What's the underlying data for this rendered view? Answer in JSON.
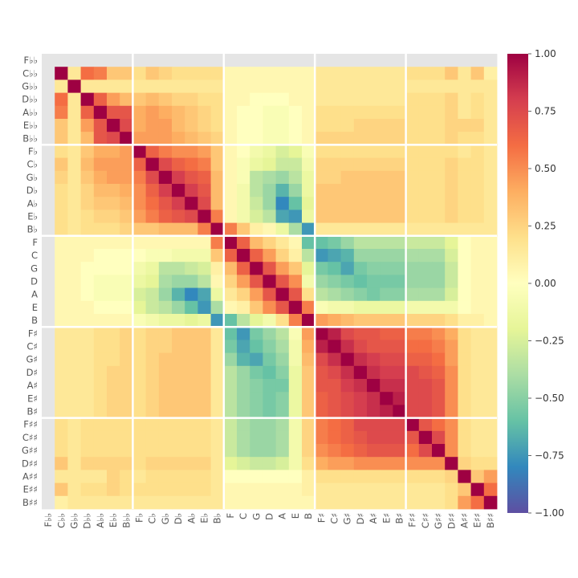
{
  "chart_data": {
    "type": "heatmap",
    "title": "",
    "xlabel": "",
    "ylabel": "",
    "labels": [
      "F♭♭",
      "C♭♭",
      "G♭♭",
      "D♭♭",
      "A♭♭",
      "E♭♭",
      "B♭♭",
      "F♭",
      "C♭",
      "G♭",
      "D♭",
      "A♭",
      "E♭",
      "B♭",
      "F",
      "C",
      "G",
      "D",
      "A",
      "E",
      "B",
      "F♯",
      "C♯",
      "G♯",
      "D♯",
      "A♯",
      "E♯",
      "B♯",
      "F♯♯",
      "C♯♯",
      "G♯♯",
      "D♯♯",
      "A♯♯",
      "E♯♯",
      "B♯♯"
    ],
    "values_row_major_35x35": [
      [
        null,
        null,
        null,
        null,
        null,
        null,
        null,
        null,
        null,
        null,
        null,
        null,
        null,
        null,
        null,
        null,
        null,
        null,
        null,
        null,
        null,
        null,
        null,
        null,
        null,
        null,
        null,
        null,
        null,
        null,
        null,
        null,
        null,
        null,
        null
      ],
      [
        null,
        1.0,
        0.15,
        0.6,
        0.55,
        0.3,
        0.3,
        0.2,
        0.3,
        0.25,
        0.2,
        0.2,
        0.2,
        0.2,
        0.05,
        0.05,
        0.05,
        0.05,
        0.05,
        0.05,
        0.05,
        0.15,
        0.15,
        0.15,
        0.15,
        0.15,
        0.15,
        0.15,
        0.2,
        0.2,
        0.2,
        0.3,
        0.15,
        0.3,
        0.1
      ],
      [
        null,
        0.15,
        1.0,
        0.15,
        0.15,
        0.15,
        0.15,
        0.15,
        0.15,
        0.15,
        0.15,
        0.15,
        0.15,
        0.15,
        0.05,
        0.05,
        0.05,
        0.05,
        0.05,
        0.05,
        0.05,
        0.15,
        0.15,
        0.15,
        0.15,
        0.15,
        0.15,
        0.15,
        0.15,
        0.15,
        0.15,
        0.15,
        0.15,
        0.15,
        0.15
      ],
      [
        null,
        0.6,
        0.15,
        1.0,
        0.65,
        0.45,
        0.35,
        0.3,
        0.35,
        0.3,
        0.25,
        0.25,
        0.2,
        0.2,
        0.05,
        0.05,
        0.0,
        0.0,
        0.0,
        0.05,
        0.05,
        0.15,
        0.15,
        0.15,
        0.15,
        0.15,
        0.15,
        0.15,
        0.2,
        0.2,
        0.2,
        0.25,
        0.15,
        0.2,
        0.15
      ],
      [
        null,
        0.55,
        0.15,
        0.65,
        1.0,
        0.7,
        0.7,
        0.4,
        0.45,
        0.4,
        0.35,
        0.3,
        0.25,
        0.2,
        0.05,
        0.0,
        0.0,
        -0.05,
        -0.05,
        0.0,
        0.05,
        0.2,
        0.2,
        0.2,
        0.2,
        0.2,
        0.2,
        0.2,
        0.2,
        0.2,
        0.2,
        0.25,
        0.15,
        0.2,
        0.15
      ],
      [
        null,
        0.3,
        0.15,
        0.45,
        0.7,
        1.0,
        0.75,
        0.4,
        0.45,
        0.45,
        0.35,
        0.3,
        0.25,
        0.2,
        0.05,
        0.0,
        0.0,
        -0.05,
        -0.05,
        0.0,
        0.05,
        0.2,
        0.2,
        0.2,
        0.25,
        0.25,
        0.25,
        0.25,
        0.2,
        0.2,
        0.2,
        0.25,
        0.25,
        0.25,
        0.15
      ],
      [
        null,
        0.3,
        0.15,
        0.35,
        0.7,
        0.75,
        1.0,
        0.45,
        0.45,
        0.45,
        0.4,
        0.35,
        0.3,
        0.25,
        0.05,
        0.0,
        0.0,
        -0.05,
        -0.05,
        0.0,
        0.05,
        0.25,
        0.25,
        0.25,
        0.25,
        0.25,
        0.25,
        0.25,
        0.2,
        0.2,
        0.2,
        0.25,
        0.2,
        0.2,
        0.15
      ],
      [
        null,
        0.2,
        0.15,
        0.3,
        0.4,
        0.4,
        0.45,
        1.0,
        0.65,
        0.55,
        0.5,
        0.5,
        0.45,
        0.3,
        0.05,
        0.0,
        -0.1,
        -0.15,
        -0.25,
        -0.2,
        -0.05,
        0.2,
        0.2,
        0.2,
        0.2,
        0.2,
        0.2,
        0.2,
        0.2,
        0.2,
        0.2,
        0.2,
        0.15,
        0.2,
        0.15
      ],
      [
        null,
        0.3,
        0.15,
        0.35,
        0.45,
        0.45,
        0.45,
        0.65,
        1.0,
        0.75,
        0.65,
        0.6,
        0.55,
        0.3,
        0.05,
        -0.05,
        -0.15,
        -0.2,
        -0.3,
        -0.3,
        -0.1,
        0.25,
        0.25,
        0.25,
        0.25,
        0.25,
        0.25,
        0.25,
        0.2,
        0.2,
        0.2,
        0.25,
        0.2,
        0.2,
        0.15
      ],
      [
        null,
        0.25,
        0.15,
        0.3,
        0.4,
        0.45,
        0.45,
        0.55,
        0.75,
        1.0,
        0.8,
        0.7,
        0.65,
        0.35,
        0.05,
        -0.05,
        -0.35,
        -0.4,
        -0.45,
        -0.35,
        -0.15,
        0.25,
        0.25,
        0.3,
        0.3,
        0.3,
        0.3,
        0.3,
        0.2,
        0.2,
        0.2,
        0.25,
        0.2,
        0.2,
        0.15
      ],
      [
        null,
        0.2,
        0.15,
        0.25,
        0.35,
        0.35,
        0.4,
        0.5,
        0.65,
        0.8,
        1.0,
        0.8,
        0.7,
        0.35,
        0.05,
        -0.1,
        -0.35,
        -0.45,
        -0.65,
        -0.45,
        -0.15,
        0.3,
        0.3,
        0.3,
        0.3,
        0.3,
        0.3,
        0.3,
        0.2,
        0.2,
        0.2,
        0.25,
        0.2,
        0.2,
        0.15
      ],
      [
        null,
        0.2,
        0.15,
        0.25,
        0.3,
        0.3,
        0.35,
        0.5,
        0.6,
        0.7,
        0.8,
        1.0,
        0.75,
        0.35,
        0.05,
        -0.1,
        -0.3,
        -0.45,
        -0.8,
        -0.6,
        -0.2,
        0.3,
        0.3,
        0.3,
        0.3,
        0.3,
        0.3,
        0.3,
        0.2,
        0.2,
        0.2,
        0.25,
        0.2,
        0.2,
        0.15
      ],
      [
        null,
        0.2,
        0.15,
        0.2,
        0.25,
        0.25,
        0.3,
        0.45,
        0.55,
        0.65,
        0.7,
        0.75,
        1.0,
        0.55,
        0.05,
        -0.1,
        -0.25,
        -0.35,
        -0.7,
        -0.75,
        -0.15,
        0.3,
        0.3,
        0.3,
        0.3,
        0.3,
        0.3,
        0.3,
        0.2,
        0.2,
        0.2,
        0.25,
        0.2,
        0.2,
        0.15
      ],
      [
        null,
        0.2,
        0.15,
        0.2,
        0.2,
        0.2,
        0.25,
        0.3,
        0.3,
        0.35,
        0.35,
        0.35,
        0.55,
        1.0,
        0.55,
        0.3,
        0.1,
        0.05,
        -0.15,
        -0.4,
        -0.75,
        0.15,
        0.15,
        0.15,
        0.15,
        0.15,
        0.15,
        0.15,
        0.15,
        0.15,
        0.15,
        0.15,
        0.15,
        0.15,
        0.15
      ],
      [
        null,
        0.05,
        0.05,
        0.05,
        0.05,
        0.05,
        0.05,
        0.05,
        0.05,
        0.05,
        0.05,
        0.05,
        0.05,
        0.55,
        1.0,
        0.65,
        0.35,
        0.25,
        0.15,
        0.05,
        -0.6,
        -0.6,
        -0.55,
        -0.45,
        -0.35,
        -0.35,
        -0.35,
        -0.35,
        -0.3,
        -0.3,
        -0.3,
        -0.2,
        0.0,
        0.05,
        0.05
      ],
      [
        null,
        0.05,
        0.05,
        0.05,
        0.0,
        0.0,
        0.0,
        0.0,
        -0.05,
        -0.05,
        -0.1,
        -0.1,
        -0.1,
        0.3,
        0.65,
        1.0,
        0.65,
        0.45,
        0.25,
        0.1,
        -0.35,
        -0.75,
        -0.7,
        -0.65,
        -0.45,
        -0.45,
        -0.45,
        -0.45,
        -0.4,
        -0.4,
        -0.4,
        -0.25,
        0.0,
        0.05,
        0.05
      ],
      [
        null,
        0.05,
        0.05,
        0.0,
        0.0,
        0.0,
        0.0,
        -0.1,
        -0.15,
        -0.35,
        -0.35,
        -0.3,
        -0.25,
        0.1,
        0.35,
        0.65,
        1.0,
        0.7,
        0.45,
        0.3,
        -0.2,
        -0.55,
        -0.6,
        -0.7,
        -0.55,
        -0.5,
        -0.5,
        -0.5,
        -0.45,
        -0.45,
        -0.45,
        -0.3,
        0.0,
        0.05,
        0.05
      ],
      [
        null,
        0.05,
        0.05,
        0.0,
        -0.05,
        -0.05,
        -0.05,
        -0.15,
        -0.2,
        -0.4,
        -0.45,
        -0.45,
        -0.35,
        0.05,
        0.25,
        0.45,
        0.7,
        1.0,
        0.7,
        0.5,
        -0.1,
        -0.45,
        -0.5,
        -0.55,
        -0.6,
        -0.55,
        -0.55,
        -0.55,
        -0.45,
        -0.45,
        -0.45,
        -0.3,
        0.0,
        0.05,
        0.05
      ],
      [
        null,
        0.05,
        0.05,
        0.0,
        -0.05,
        -0.05,
        -0.05,
        -0.25,
        -0.3,
        -0.45,
        -0.65,
        -0.8,
        -0.7,
        -0.15,
        0.15,
        0.25,
        0.45,
        0.7,
        1.0,
        0.7,
        0.2,
        -0.35,
        -0.4,
        -0.45,
        -0.5,
        -0.55,
        -0.5,
        -0.5,
        -0.4,
        -0.4,
        -0.4,
        -0.25,
        0.0,
        0.05,
        0.05
      ],
      [
        null,
        0.05,
        0.05,
        0.05,
        0.0,
        0.0,
        0.0,
        -0.2,
        -0.3,
        -0.35,
        -0.45,
        -0.6,
        -0.75,
        -0.4,
        0.05,
        0.1,
        0.3,
        0.5,
        0.7,
        1.0,
        0.55,
        -0.05,
        -0.1,
        -0.1,
        -0.15,
        -0.15,
        -0.15,
        -0.15,
        -0.1,
        -0.1,
        -0.1,
        -0.1,
        0.0,
        0.05,
        0.05
      ],
      [
        null,
        0.05,
        0.05,
        0.05,
        0.05,
        0.05,
        0.05,
        -0.05,
        -0.1,
        -0.15,
        -0.15,
        -0.2,
        -0.15,
        -0.75,
        -0.6,
        -0.35,
        -0.2,
        -0.1,
        0.2,
        0.55,
        1.0,
        0.45,
        0.4,
        0.35,
        0.3,
        0.3,
        0.3,
        0.3,
        0.25,
        0.25,
        0.25,
        0.2,
        0.1,
        0.1,
        0.05
      ],
      [
        null,
        0.15,
        0.15,
        0.15,
        0.2,
        0.2,
        0.25,
        0.2,
        0.25,
        0.25,
        0.3,
        0.3,
        0.3,
        0.15,
        -0.6,
        -0.75,
        -0.55,
        -0.45,
        -0.35,
        -0.05,
        0.45,
        1.0,
        0.9,
        0.75,
        0.7,
        0.7,
        0.65,
        0.65,
        0.55,
        0.55,
        0.5,
        0.4,
        0.2,
        0.15,
        0.15
      ],
      [
        null,
        0.15,
        0.15,
        0.15,
        0.2,
        0.2,
        0.25,
        0.2,
        0.25,
        0.25,
        0.3,
        0.3,
        0.3,
        0.15,
        -0.55,
        -0.7,
        -0.6,
        -0.5,
        -0.4,
        -0.1,
        0.4,
        0.9,
        1.0,
        0.85,
        0.75,
        0.7,
        0.7,
        0.7,
        0.6,
        0.6,
        0.55,
        0.45,
        0.2,
        0.15,
        0.15
      ],
      [
        null,
        0.15,
        0.15,
        0.15,
        0.2,
        0.2,
        0.25,
        0.2,
        0.25,
        0.3,
        0.3,
        0.3,
        0.3,
        0.15,
        -0.45,
        -0.65,
        -0.7,
        -0.55,
        -0.45,
        -0.1,
        0.35,
        0.75,
        0.85,
        1.0,
        0.85,
        0.8,
        0.75,
        0.75,
        0.65,
        0.65,
        0.6,
        0.45,
        0.2,
        0.15,
        0.15
      ],
      [
        null,
        0.15,
        0.15,
        0.15,
        0.2,
        0.25,
        0.25,
        0.2,
        0.25,
        0.3,
        0.3,
        0.3,
        0.3,
        0.15,
        -0.35,
        -0.45,
        -0.55,
        -0.6,
        -0.5,
        -0.15,
        0.3,
        0.7,
        0.75,
        0.85,
        1.0,
        0.85,
        0.8,
        0.8,
        0.75,
        0.7,
        0.65,
        0.5,
        0.2,
        0.15,
        0.15
      ],
      [
        null,
        0.15,
        0.15,
        0.15,
        0.2,
        0.25,
        0.25,
        0.2,
        0.25,
        0.3,
        0.3,
        0.3,
        0.3,
        0.15,
        -0.35,
        -0.45,
        -0.5,
        -0.55,
        -0.55,
        -0.15,
        0.3,
        0.7,
        0.7,
        0.8,
        0.85,
        1.0,
        0.85,
        0.85,
        0.75,
        0.75,
        0.7,
        0.5,
        0.2,
        0.15,
        0.15
      ],
      [
        null,
        0.15,
        0.15,
        0.15,
        0.2,
        0.25,
        0.25,
        0.2,
        0.25,
        0.3,
        0.3,
        0.3,
        0.3,
        0.15,
        -0.35,
        -0.45,
        -0.5,
        -0.55,
        -0.5,
        -0.15,
        0.3,
        0.65,
        0.7,
        0.75,
        0.8,
        0.85,
        1.0,
        0.9,
        0.75,
        0.75,
        0.7,
        0.5,
        0.2,
        0.15,
        0.15
      ],
      [
        null,
        0.15,
        0.15,
        0.15,
        0.2,
        0.25,
        0.25,
        0.2,
        0.25,
        0.3,
        0.3,
        0.3,
        0.3,
        0.15,
        -0.35,
        -0.45,
        -0.5,
        -0.55,
        -0.5,
        -0.15,
        0.3,
        0.65,
        0.7,
        0.75,
        0.8,
        0.85,
        0.9,
        1.0,
        0.75,
        0.75,
        0.7,
        0.5,
        0.2,
        0.15,
        0.15
      ],
      [
        null,
        0.2,
        0.15,
        0.2,
        0.2,
        0.2,
        0.2,
        0.2,
        0.2,
        0.2,
        0.2,
        0.2,
        0.2,
        0.15,
        -0.3,
        -0.4,
        -0.45,
        -0.45,
        -0.4,
        -0.1,
        0.25,
        0.55,
        0.6,
        0.65,
        0.75,
        0.75,
        0.75,
        0.75,
        1.0,
        0.7,
        0.6,
        0.5,
        0.2,
        0.15,
        0.15
      ],
      [
        null,
        0.2,
        0.15,
        0.2,
        0.2,
        0.2,
        0.2,
        0.2,
        0.2,
        0.2,
        0.2,
        0.2,
        0.2,
        0.15,
        -0.3,
        -0.4,
        -0.45,
        -0.45,
        -0.4,
        -0.1,
        0.25,
        0.55,
        0.6,
        0.65,
        0.7,
        0.75,
        0.75,
        0.75,
        0.7,
        1.0,
        0.75,
        0.5,
        0.2,
        0.15,
        0.15
      ],
      [
        null,
        0.2,
        0.15,
        0.2,
        0.2,
        0.2,
        0.2,
        0.2,
        0.2,
        0.2,
        0.2,
        0.2,
        0.2,
        0.15,
        -0.3,
        -0.4,
        -0.45,
        -0.45,
        -0.4,
        -0.1,
        0.25,
        0.5,
        0.55,
        0.6,
        0.65,
        0.7,
        0.7,
        0.7,
        0.6,
        0.75,
        1.0,
        0.5,
        0.2,
        0.15,
        0.15
      ],
      [
        null,
        0.3,
        0.15,
        0.25,
        0.25,
        0.25,
        0.25,
        0.2,
        0.25,
        0.25,
        0.25,
        0.25,
        0.25,
        0.15,
        -0.2,
        -0.25,
        -0.3,
        -0.3,
        -0.25,
        -0.1,
        0.2,
        0.4,
        0.45,
        0.45,
        0.5,
        0.5,
        0.5,
        0.5,
        0.5,
        0.5,
        0.5,
        1.0,
        0.25,
        0.2,
        0.2
      ],
      [
        null,
        0.15,
        0.15,
        0.15,
        0.15,
        0.25,
        0.2,
        0.15,
        0.2,
        0.2,
        0.2,
        0.2,
        0.2,
        0.15,
        0.0,
        0.0,
        0.0,
        0.0,
        0.0,
        0.0,
        0.1,
        0.2,
        0.2,
        0.2,
        0.2,
        0.2,
        0.2,
        0.2,
        0.2,
        0.2,
        0.2,
        0.25,
        1.0,
        0.3,
        0.45
      ],
      [
        null,
        0.3,
        0.15,
        0.2,
        0.2,
        0.25,
        0.2,
        0.2,
        0.2,
        0.2,
        0.2,
        0.2,
        0.2,
        0.15,
        0.05,
        0.05,
        0.05,
        0.05,
        0.05,
        0.05,
        0.1,
        0.15,
        0.15,
        0.15,
        0.15,
        0.15,
        0.15,
        0.15,
        0.15,
        0.15,
        0.15,
        0.2,
        0.3,
        1.0,
        0.6
      ],
      [
        null,
        0.1,
        0.15,
        0.15,
        0.15,
        0.15,
        0.15,
        0.15,
        0.15,
        0.15,
        0.15,
        0.15,
        0.15,
        0.15,
        0.05,
        0.05,
        0.05,
        0.05,
        0.05,
        0.05,
        0.05,
        0.15,
        0.15,
        0.15,
        0.15,
        0.15,
        0.15,
        0.15,
        0.15,
        0.15,
        0.15,
        0.2,
        0.45,
        0.6,
        1.0
      ]
    ],
    "missing_value_color": "#e5e5e5",
    "group_size": 7,
    "colorbar": {
      "min": -1.0,
      "max": 1.0,
      "ticks": [
        "1.00",
        "0.75",
        "0.50",
        "0.25",
        "0.00",
        "−0.25",
        "−0.50",
        "−0.75",
        "−1.00"
      ],
      "colormap": "Spectral",
      "stops": [
        "#5e4fa2",
        "#3288bd",
        "#66c2a5",
        "#abdda4",
        "#e6f598",
        "#ffffbf",
        "#fee08b",
        "#fdae61",
        "#f46d43",
        "#d53e4f",
        "#9e0142"
      ]
    },
    "grid": false
  }
}
